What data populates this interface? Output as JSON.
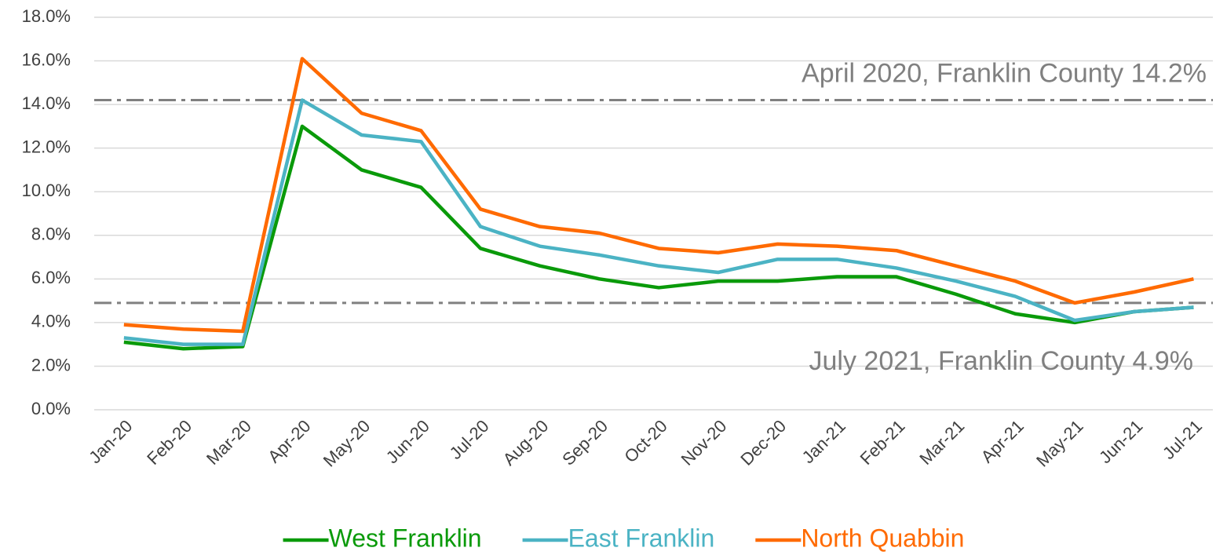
{
  "chart_data": {
    "type": "line",
    "categories": [
      "Jan-20",
      "Feb-20",
      "Mar-20",
      "Apr-20",
      "May-20",
      "Jun-20",
      "Jul-20",
      "Aug-20",
      "Sep-20",
      "Oct-20",
      "Nov-20",
      "Dec-20",
      "Jan-21",
      "Feb-21",
      "Mar-21",
      "Apr-21",
      "May-21",
      "Jun-21",
      "Jul-21"
    ],
    "series": [
      {
        "name": "West Franklin",
        "color": "#0a9a0a",
        "values": [
          3.1,
          2.8,
          2.9,
          13.0,
          11.0,
          10.2,
          7.4,
          6.6,
          6.0,
          5.6,
          5.9,
          5.9,
          6.1,
          6.1,
          5.3,
          4.4,
          4.0,
          4.5,
          4.7
        ]
      },
      {
        "name": "East Franklin",
        "color": "#4bb3c4",
        "values": [
          3.3,
          3.0,
          3.0,
          14.2,
          12.6,
          12.3,
          8.4,
          7.5,
          7.1,
          6.6,
          6.3,
          6.9,
          6.9,
          6.5,
          5.9,
          5.2,
          4.1,
          4.5,
          4.7
        ]
      },
      {
        "name": "North Quabbin",
        "color": "#ff6a00",
        "values": [
          3.9,
          3.7,
          3.6,
          16.1,
          13.6,
          12.8,
          9.2,
          8.4,
          8.1,
          7.4,
          7.2,
          7.6,
          7.5,
          7.3,
          6.6,
          5.9,
          4.9,
          5.4,
          6.0
        ]
      }
    ],
    "ylim": [
      0,
      18
    ],
    "yticks": [
      {
        "value": 0,
        "label": "0.0%"
      },
      {
        "value": 2,
        "label": "2.0%"
      },
      {
        "value": 4,
        "label": "4.0%"
      },
      {
        "value": 6,
        "label": "6.0%"
      },
      {
        "value": 8,
        "label": "8.0%"
      },
      {
        "value": 10,
        "label": "10.0%"
      },
      {
        "value": 12,
        "label": "12.0%"
      },
      {
        "value": 14,
        "label": "14.0%"
      },
      {
        "value": 16,
        "label": "16.0%"
      },
      {
        "value": 18,
        "label": "18.0%"
      }
    ],
    "reference_lines": [
      {
        "value": 14.2,
        "label": "April 2020, Franklin County 14.2%"
      },
      {
        "value": 4.9,
        "label": "July 2021, Franklin County 4.9%"
      }
    ],
    "grid": true,
    "legend": "bottom"
  }
}
